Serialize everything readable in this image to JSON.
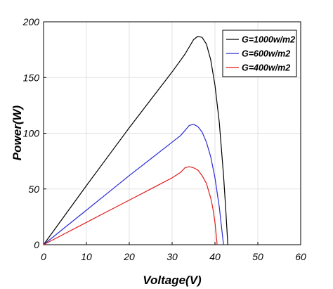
{
  "chart_data": {
    "type": "line",
    "title": "",
    "xlabel": "Voltage(V)",
    "ylabel": "Power(W)",
    "xlim": [
      0,
      60
    ],
    "ylim": [
      0,
      200
    ],
    "xticks": [
      0,
      10,
      20,
      30,
      40,
      50,
      60
    ],
    "yticks": [
      0,
      50,
      100,
      150,
      200
    ],
    "xtick_labels": [
      "0",
      "10",
      "20",
      "30",
      "40",
      "50",
      "60"
    ],
    "ytick_labels": [
      "0",
      "50",
      "100",
      "150",
      "200"
    ],
    "grid": true,
    "legend_position": "top-right",
    "series": [
      {
        "name": "G=1000w/m2",
        "color": "#000000",
        "x": [
          0,
          5,
          10,
          15,
          20,
          25,
          30,
          33,
          35,
          36,
          37,
          38,
          39,
          40,
          41,
          42,
          42.5,
          43
        ],
        "y": [
          0,
          26.5,
          53,
          79,
          105,
          130,
          155,
          171,
          184,
          187,
          186,
          180,
          166,
          143,
          110,
          62,
          32,
          0
        ]
      },
      {
        "name": "G=600w/m2",
        "color": "#2b2bd6",
        "x": [
          0,
          5,
          10,
          15,
          20,
          25,
          30,
          32,
          34,
          35,
          36,
          37,
          38,
          39,
          40,
          41,
          41.5,
          42
        ],
        "y": [
          0,
          15.5,
          31,
          46.5,
          62,
          77,
          92,
          98,
          107,
          108,
          106,
          101,
          92,
          79,
          60,
          34,
          17,
          0
        ]
      },
      {
        "name": "G=400w/m2",
        "color": "#e01b1b",
        "x": [
          0,
          5,
          10,
          15,
          20,
          25,
          30,
          32,
          33,
          34,
          35,
          36,
          37,
          38,
          39,
          39.5,
          40,
          40.5
        ],
        "y": [
          0,
          10,
          20,
          30,
          40,
          50,
          60,
          65,
          69,
          70,
          69,
          67,
          62,
          55,
          42,
          33,
          20,
          0
        ]
      }
    ]
  }
}
